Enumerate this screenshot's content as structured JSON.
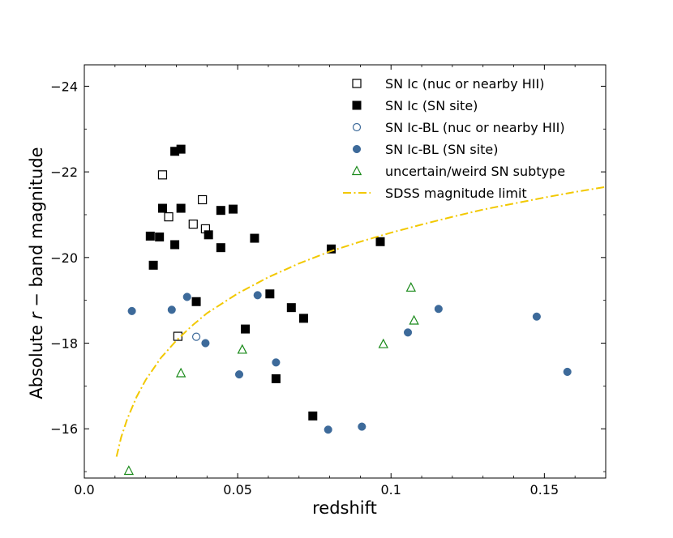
{
  "chart_data": {
    "type": "scatter",
    "title": "",
    "xlabel": "redshift",
    "ylabel": {
      "prefix": "Absolute ",
      "var": "r",
      "suffix": " − band magnitude"
    },
    "xlim": [
      0.0,
      0.17
    ],
    "ylim": [
      -14.85,
      -24.5
    ],
    "y_inverted": true,
    "x_ticks": [
      {
        "value": 0.0,
        "label": "0.0"
      },
      {
        "value": 0.05,
        "label": "0.05"
      },
      {
        "value": 0.1,
        "label": "0.1"
      },
      {
        "value": 0.15,
        "label": "0.15"
      }
    ],
    "y_ticks": [
      {
        "value": -16,
        "label": "−16"
      },
      {
        "value": -18,
        "label": "−18"
      },
      {
        "value": -20,
        "label": "−20"
      },
      {
        "value": -22,
        "label": "−22"
      },
      {
        "value": -24,
        "label": "−24"
      }
    ],
    "legend_position": "top-right",
    "series": [
      {
        "name": "SN Ic (nuc or nearby HII)",
        "marker": "square-open",
        "color": "#000000",
        "points": [
          [
            0.0255,
            -21.93
          ],
          [
            0.0275,
            -20.95
          ],
          [
            0.0385,
            -21.35
          ],
          [
            0.0355,
            -20.78
          ],
          [
            0.0395,
            -20.67
          ],
          [
            0.0305,
            -18.16
          ]
        ]
      },
      {
        "name": "SN Ic (SN site)",
        "marker": "square-filled",
        "color": "#000000",
        "points": [
          [
            0.0295,
            -22.48
          ],
          [
            0.0315,
            -22.53
          ],
          [
            0.0255,
            -21.15
          ],
          [
            0.0315,
            -21.15
          ],
          [
            0.0215,
            -20.5
          ],
          [
            0.0245,
            -20.48
          ],
          [
            0.0295,
            -20.3
          ],
          [
            0.0405,
            -20.53
          ],
          [
            0.0445,
            -21.1
          ],
          [
            0.0485,
            -21.13
          ],
          [
            0.0445,
            -20.23
          ],
          [
            0.0555,
            -20.45
          ],
          [
            0.0225,
            -19.82
          ],
          [
            0.0365,
            -18.97
          ],
          [
            0.0525,
            -18.33
          ],
          [
            0.0605,
            -19.15
          ],
          [
            0.0675,
            -18.83
          ],
          [
            0.0715,
            -18.58
          ],
          [
            0.0805,
            -20.2
          ],
          [
            0.0965,
            -20.37
          ],
          [
            0.0625,
            -17.17
          ],
          [
            0.0745,
            -16.3
          ]
        ]
      },
      {
        "name": "SN Ic-BL (nuc or nearby HII)",
        "marker": "circle-open",
        "color": "#3d6a9a",
        "points": [
          [
            0.0365,
            -18.15
          ]
        ]
      },
      {
        "name": "SN Ic-BL (SN site)",
        "marker": "circle-filled",
        "color": "#3d6a9a",
        "points": [
          [
            0.0155,
            -18.75
          ],
          [
            0.0335,
            -19.08
          ],
          [
            0.0285,
            -18.78
          ],
          [
            0.0395,
            -18.0
          ],
          [
            0.0565,
            -19.12
          ],
          [
            0.0505,
            -17.27
          ],
          [
            0.0625,
            -17.55
          ],
          [
            0.0795,
            -15.98
          ],
          [
            0.0905,
            -16.05
          ],
          [
            0.1055,
            -18.25
          ],
          [
            0.1155,
            -18.8
          ],
          [
            0.1475,
            -18.62
          ],
          [
            0.1575,
            -17.33
          ]
        ]
      },
      {
        "name": "uncertain/weird SN subtype",
        "marker": "triangle-open",
        "color": "#1a8a1a",
        "points": [
          [
            0.0145,
            -15.02
          ],
          [
            0.0315,
            -17.3
          ],
          [
            0.0515,
            -17.85
          ],
          [
            0.0975,
            -17.98
          ],
          [
            0.1065,
            -19.3
          ],
          [
            0.1075,
            -18.53
          ]
        ]
      },
      {
        "name": "SDSS magnitude limit",
        "marker": "line-dashdot",
        "color": "#f2c800",
        "curve": [
          [
            0.0105,
            -15.35
          ],
          [
            0.012,
            -15.8
          ],
          [
            0.014,
            -16.23
          ],
          [
            0.017,
            -16.74
          ],
          [
            0.02,
            -17.14
          ],
          [
            0.025,
            -17.66
          ],
          [
            0.03,
            -18.06
          ],
          [
            0.035,
            -18.4
          ],
          [
            0.04,
            -18.7
          ],
          [
            0.05,
            -19.16
          ],
          [
            0.06,
            -19.54
          ],
          [
            0.07,
            -19.86
          ],
          [
            0.08,
            -20.14
          ],
          [
            0.09,
            -20.37
          ],
          [
            0.1,
            -20.58
          ],
          [
            0.11,
            -20.77
          ],
          [
            0.12,
            -20.95
          ],
          [
            0.13,
            -21.12
          ],
          [
            0.14,
            -21.26
          ],
          [
            0.15,
            -21.4
          ],
          [
            0.16,
            -21.53
          ],
          [
            0.17,
            -21.65
          ]
        ]
      }
    ]
  }
}
